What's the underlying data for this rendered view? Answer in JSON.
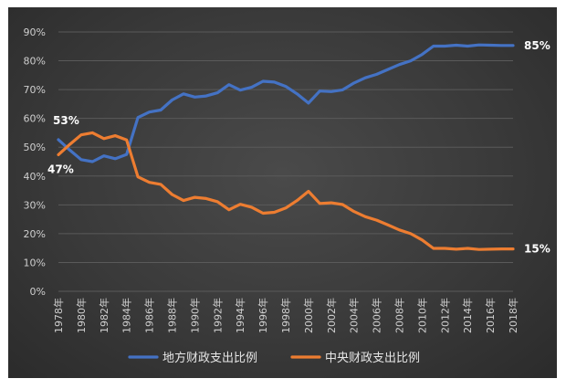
{
  "chart_data": {
    "type": "line",
    "title": "",
    "xlabel": "",
    "ylabel": "",
    "ylim": [
      0,
      90
    ],
    "y_ticks": [
      "0%",
      "10%",
      "20%",
      "30%",
      "40%",
      "50%",
      "60%",
      "70%",
      "80%",
      "90%"
    ],
    "grid": true,
    "legend": "bottom",
    "x": [
      1978,
      1979,
      1980,
      1981,
      1982,
      1983,
      1984,
      1985,
      1986,
      1987,
      1988,
      1989,
      1990,
      1991,
      1992,
      1993,
      1994,
      1995,
      1996,
      1997,
      1998,
      1999,
      2000,
      2001,
      2002,
      2003,
      2004,
      2005,
      2006,
      2007,
      2008,
      2009,
      2010,
      2011,
      2012,
      2013,
      2014,
      2015,
      2016,
      2017,
      2018
    ],
    "x_tick_labels": [
      "1978年",
      "1980年",
      "1982年",
      "1984年",
      "1986年",
      "1988年",
      "1990年",
      "1992年",
      "1994年",
      "1996年",
      "1998年",
      "2000年",
      "2002年",
      "2004年",
      "2006年",
      "2008年",
      "2010年",
      "2012年",
      "2014年",
      "2016年",
      "2018年"
    ],
    "series": [
      {
        "name": "地方财政支出比例",
        "color": "#4472c4",
        "values": [
          52.6,
          49.0,
          45.7,
          45.0,
          47.0,
          46.0,
          47.5,
          60.3,
          62.2,
          62.9,
          66.4,
          68.5,
          67.4,
          67.8,
          68.9,
          71.7,
          69.8,
          70.8,
          72.9,
          72.6,
          71.1,
          68.5,
          65.3,
          69.5,
          69.3,
          69.9,
          72.3,
          74.1,
          75.3,
          77.0,
          78.7,
          80.0,
          82.2,
          85.1,
          85.1,
          85.4,
          85.1,
          85.5,
          85.4,
          85.3,
          85.3
        ]
      },
      {
        "name": "中央财政支出比例",
        "color": "#ed7d31",
        "values": [
          47.4,
          51.0,
          54.3,
          55.0,
          53.0,
          54.0,
          52.5,
          39.7,
          37.8,
          37.1,
          33.6,
          31.5,
          32.6,
          32.2,
          31.1,
          28.3,
          30.2,
          29.2,
          27.1,
          27.4,
          28.9,
          31.5,
          34.7,
          30.5,
          30.7,
          30.1,
          27.7,
          25.9,
          24.7,
          23.0,
          21.3,
          20.0,
          17.8,
          14.9,
          14.9,
          14.6,
          14.9,
          14.5,
          14.6,
          14.7,
          14.7
        ]
      }
    ],
    "annotations": [
      {
        "text": "53%",
        "series": 0,
        "index": 0
      },
      {
        "text": "47%",
        "series": 1,
        "index": 0
      },
      {
        "text": "85%",
        "series": 0,
        "index": 40
      },
      {
        "text": "15%",
        "series": 1,
        "index": 40
      }
    ]
  }
}
